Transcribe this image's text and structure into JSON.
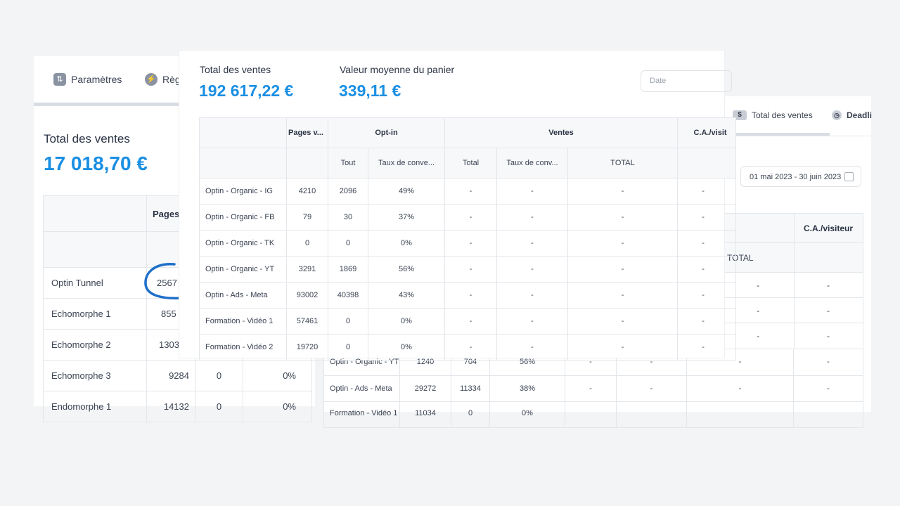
{
  "colors": {
    "accent": "#1a8fe3",
    "background": "#f3f4f5",
    "circle": "#1f6fc9"
  },
  "left": {
    "tabs": [
      {
        "label": "Paramètres",
        "icon": "sliders-icon"
      },
      {
        "label": "Règ",
        "icon": "lightning-icon"
      }
    ],
    "total_label": "Total des ventes",
    "total_value": "17 018,70 €",
    "col_header": "Pages",
    "rows": [
      {
        "name": "Optin Tunnel",
        "pages": "2567",
        "optin": "",
        "rate": ""
      },
      {
        "name": "Echomorphe 1",
        "pages": "855",
        "optin": "",
        "rate": ""
      },
      {
        "name": "Echomorphe 2",
        "pages": "1303",
        "optin": "",
        "rate": ""
      },
      {
        "name": "Echomorphe 3",
        "pages": "9284",
        "optin": "0",
        "rate": "0%"
      },
      {
        "name": "Endomorphe 1",
        "pages": "14132",
        "optin": "0",
        "rate": "0%"
      }
    ]
  },
  "right": {
    "tabs": [
      {
        "label": "Total des ventes",
        "icon": "dollar-icon"
      },
      {
        "label": "Deadli",
        "icon": "clock-icon"
      }
    ],
    "date_range": "01 mai 2023 - 30 juin 2023",
    "col_ca": "C.A./visiteur",
    "col_total": "TOTAL",
    "top_rows": [
      {
        "total": "-",
        "ca": "-"
      },
      {
        "total": "-",
        "ca": "-"
      },
      {
        "total": "-",
        "ca": "-"
      }
    ]
  },
  "bottom": {
    "rows": [
      {
        "name": "Optin - Organic - YT",
        "pages": "1240",
        "tout": "704",
        "taux": "56%",
        "vtotal": "-",
        "vtaux": "-",
        "total": "-",
        "ca": "-"
      },
      {
        "name": "Optin - Ads - Meta",
        "pages": "29272",
        "tout": "11334",
        "taux": "38%",
        "vtotal": "-",
        "vtaux": "-",
        "total": "-",
        "ca": "-"
      },
      {
        "name": "Formation - Vidéo 1",
        "pages": "11034",
        "tout": "0",
        "taux": "0%",
        "vtotal": "",
        "vtaux": "",
        "total": "",
        "ca": ""
      }
    ]
  },
  "center": {
    "total_label": "Total des ventes",
    "total_value": "192 617,22 €",
    "avg_label": "Valeur moyenne du panier",
    "avg_value": "339,11 €",
    "date_placeholder": "Date",
    "headers": {
      "pages": "Pages v...",
      "optin": "Opt-in",
      "ventes": "Ventes",
      "ca": "C.A./visit"
    },
    "subheaders": {
      "tout": "Tout",
      "taux_optin": "Taux de conve...",
      "vtotal": "Total",
      "vtaux": "Taux de conv...",
      "total": "TOTAL"
    },
    "rows": [
      {
        "name": "Optin - Organic - IG",
        "pages": "4210",
        "tout": "2096",
        "taux": "49%",
        "vtotal": "-",
        "vtaux": "-",
        "total": "-",
        "ca": "-"
      },
      {
        "name": "Optin - Organic - FB",
        "pages": "79",
        "tout": "30",
        "taux": "37%",
        "vtotal": "-",
        "vtaux": "-",
        "total": "-",
        "ca": "-"
      },
      {
        "name": "Optin - Organic - TK",
        "pages": "0",
        "tout": "0",
        "taux": "0%",
        "vtotal": "-",
        "vtaux": "-",
        "total": "-",
        "ca": "-"
      },
      {
        "name": "Optin - Organic - YT",
        "pages": "3291",
        "tout": "1869",
        "taux": "56%",
        "vtotal": "-",
        "vtaux": "-",
        "total": "-",
        "ca": "-"
      },
      {
        "name": "Optin - Ads - Meta",
        "pages": "93002",
        "tout": "40398",
        "taux": "43%",
        "vtotal": "-",
        "vtaux": "-",
        "total": "-",
        "ca": "-"
      },
      {
        "name": "Formation - Vidéo 1",
        "pages": "57461",
        "tout": "0",
        "taux": "0%",
        "vtotal": "-",
        "vtaux": "-",
        "total": "-",
        "ca": "-"
      },
      {
        "name": "Formation - Vidéo 2",
        "pages": "19720",
        "tout": "0",
        "taux": "0%",
        "vtotal": "-",
        "vtaux": "-",
        "total": "-",
        "ca": "-"
      }
    ]
  }
}
